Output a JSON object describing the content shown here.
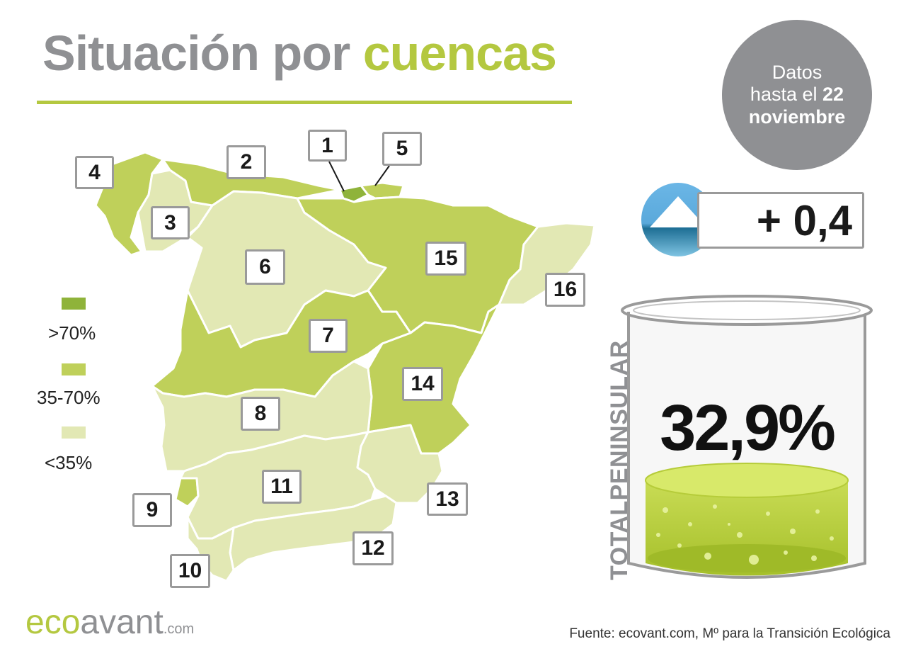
{
  "title": {
    "part1": "Situación por",
    "part2": "cuencas"
  },
  "date_note": {
    "line1": "Datos",
    "line2": "hasta el",
    "day": "22",
    "month": "noviembre"
  },
  "legend": [
    {
      "label": ">70%",
      "color": "#8fb33a"
    },
    {
      "label": "35-70%",
      "color": "#bfd05a"
    },
    {
      "label": "<35%",
      "color": "#e2e8b4"
    }
  ],
  "basins": [
    {
      "id": "1",
      "category": ">70%"
    },
    {
      "id": "2",
      "category": "35-70%"
    },
    {
      "id": "3",
      "category": "<35%"
    },
    {
      "id": "4",
      "category": "35-70%"
    },
    {
      "id": "5",
      "category": "35-70%"
    },
    {
      "id": "6",
      "category": "<35%"
    },
    {
      "id": "7",
      "category": "35-70%"
    },
    {
      "id": "8",
      "category": "<35%"
    },
    {
      "id": "9",
      "category": "35-70%"
    },
    {
      "id": "10",
      "category": "<35%"
    },
    {
      "id": "11",
      "category": "<35%"
    },
    {
      "id": "12",
      "category": "<35%"
    },
    {
      "id": "13",
      "category": "<35%"
    },
    {
      "id": "14",
      "category": "35-70%"
    },
    {
      "id": "15",
      "category": "35-70%"
    },
    {
      "id": "16",
      "category": "<35%"
    }
  ],
  "change": {
    "value": "+ 0,4",
    "direction": "up-arrow-icon"
  },
  "total": {
    "label": "TOTALPENINSULAR",
    "value": "32,9%",
    "fill_fraction": 0.329
  },
  "logo": {
    "eco": "eco",
    "avant": "avant",
    "com": ".com"
  },
  "source": "Fuente: ecovant.com, Mº para la Transición Ecológica",
  "colors": {
    "accent": "#b4c840",
    "gray": "#8f9093",
    "high": "#8fb33a",
    "mid": "#bfd05a",
    "low": "#e2e8b4"
  }
}
